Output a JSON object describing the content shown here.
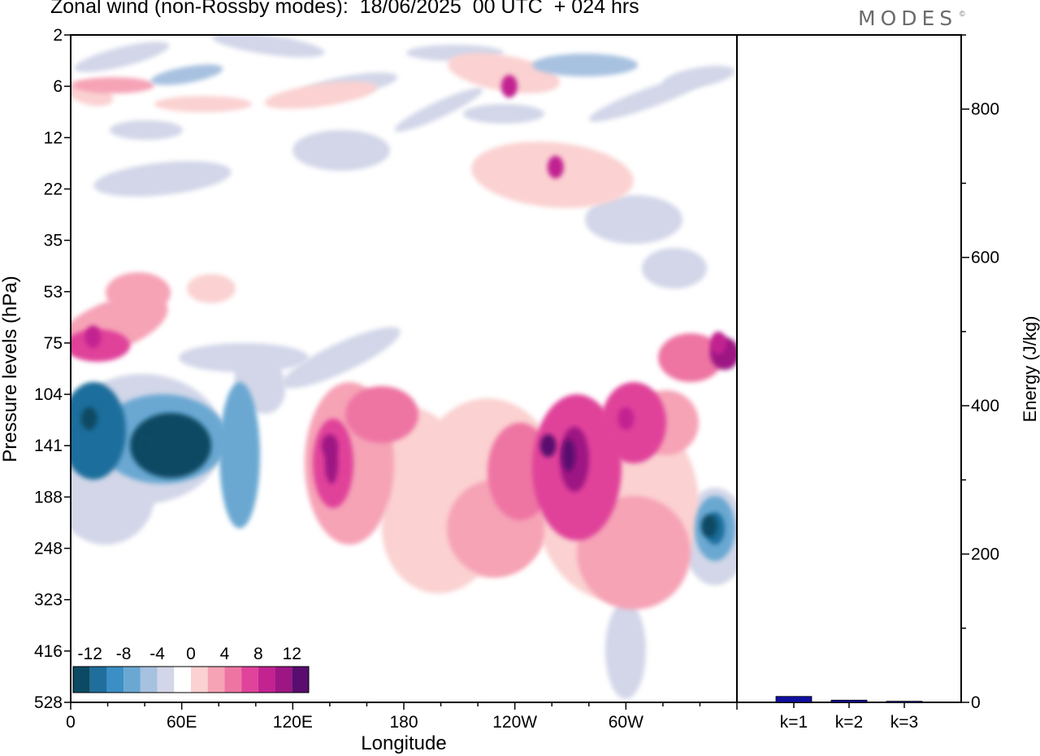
{
  "header": {
    "title": "Zonal wind (non-Rossby modes):  18/06/2025  00 UTC  + 024 hrs",
    "brand": "MODES",
    "brand_mark": "©"
  },
  "chart_data": [
    {
      "type": "heatmap",
      "xlabel": "Longitude",
      "ylabel": "Pressure levels (hPa)",
      "x_ticks": [
        "0",
        "60E",
        "120E",
        "180",
        "120W",
        "60W"
      ],
      "y_ticks": [
        "2",
        "6",
        "12",
        "22",
        "35",
        "53",
        "75",
        "104",
        "141",
        "188",
        "248",
        "323",
        "416",
        "528"
      ],
      "colorbar": {
        "labels": [
          "-12",
          "-8",
          "-4",
          "0",
          "4",
          "8",
          "12"
        ],
        "colors": [
          "#0c4a63",
          "#1f6e9c",
          "#3b8fc4",
          "#6aa8d2",
          "#a7c1e0",
          "#d2d6e8",
          "#ffffff",
          "#fbd1d1",
          "#f6a3b6",
          "#ee75a2",
          "#e0439a",
          "#c22391",
          "#9d1683",
          "#5a0d6e"
        ]
      },
      "features": [
        {
          "name": "negative core",
          "x": 40,
          "y": 141,
          "value": -12
        },
        {
          "name": "negative core",
          "x": 10,
          "y": 120,
          "value": -12
        },
        {
          "name": "negative core",
          "x": 345,
          "y": 220,
          "value": -10
        },
        {
          "name": "positive core",
          "x": 12,
          "y": 72,
          "value": 8
        },
        {
          "name": "positive core",
          "x": 140,
          "y": 141,
          "value": 10
        },
        {
          "name": "positive core",
          "x": 258,
          "y": 141,
          "value": 12
        },
        {
          "name": "positive core",
          "x": 300,
          "y": 120,
          "value": 8
        },
        {
          "name": "positive core",
          "x": 350,
          "y": 75,
          "value": 8
        },
        {
          "name": "positive core",
          "x": 237,
          "y": 6,
          "value": 8
        },
        {
          "name": "positive core",
          "x": 262,
          "y": 17,
          "value": 8
        }
      ]
    },
    {
      "type": "bar",
      "categories": [
        "k=1",
        "k=2",
        "k=3"
      ],
      "values": [
        8,
        3,
        1.5
      ],
      "ylabel": "Energy (J/kg)",
      "y_ticks": [
        "0",
        "200",
        "400",
        "600",
        "800"
      ],
      "ylim": [
        0,
        900
      ],
      "bar_color": "#1010a0"
    }
  ]
}
